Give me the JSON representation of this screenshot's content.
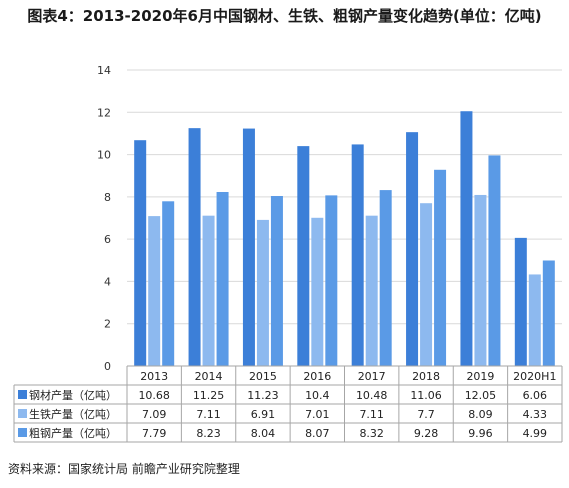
{
  "chart_data": {
    "type": "bar",
    "title": "图表4：2013-2020年6月中国钢材、生铁、粗钢产量变化趋势(单位：亿吨)",
    "categories": [
      "2013",
      "2014",
      "2015",
      "2016",
      "2017",
      "2018",
      "2019",
      "2020H1"
    ],
    "ylim": [
      0,
      14
    ],
    "yticks": [
      "0",
      "2",
      "4",
      "6",
      "8",
      "10",
      "12",
      "14"
    ],
    "grid": true,
    "legend": "data-table-left",
    "series": [
      {
        "name": "钢材产量（亿吨）",
        "color": "#3c7fd8",
        "values": [
          10.68,
          11.25,
          11.23,
          10.4,
          10.48,
          11.06,
          12.05,
          6.06
        ],
        "labels": [
          "10.68",
          "11.25",
          "11.23",
          "10.4",
          "10.48",
          "11.06",
          "12.05",
          "6.06"
        ]
      },
      {
        "name": "生铁产量（亿吨）",
        "color": "#8db9ef",
        "values": [
          7.09,
          7.11,
          6.91,
          7.01,
          7.11,
          7.7,
          8.09,
          4.33
        ],
        "labels": [
          "7.09",
          "7.11",
          "6.91",
          "7.01",
          "7.11",
          "7.7",
          "8.09",
          "4.33"
        ]
      },
      {
        "name": "粗钢产量（亿吨）",
        "color": "#5a9ae6",
        "values": [
          7.79,
          8.23,
          8.04,
          8.07,
          8.32,
          9.28,
          9.96,
          4.99
        ],
        "labels": [
          "7.79",
          "8.23",
          "8.04",
          "8.07",
          "8.32",
          "9.28",
          "9.96",
          "4.99"
        ]
      }
    ]
  },
  "source": "资料来源：国家统计局 前瞻产业研究院整理"
}
